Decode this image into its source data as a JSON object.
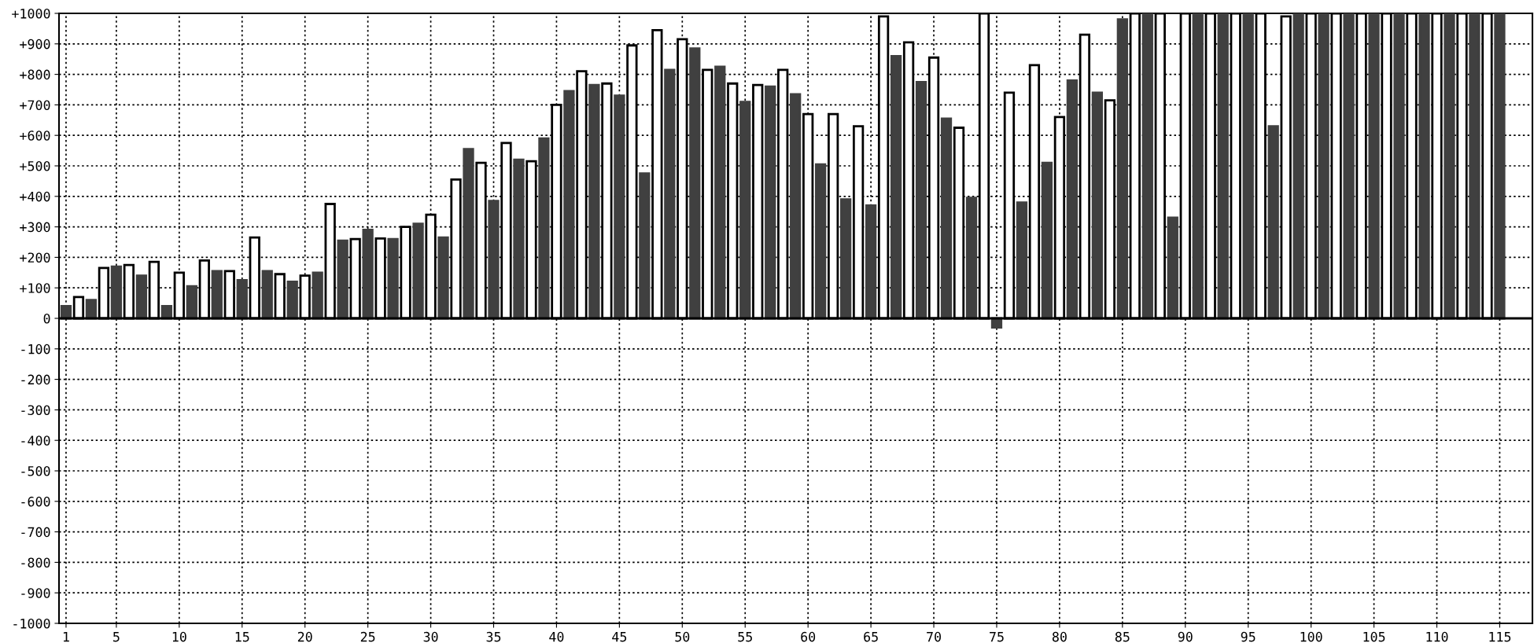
{
  "chart_data": {
    "type": "bar",
    "categories": [
      "1",
      null,
      null,
      null,
      "5",
      null,
      null,
      null,
      null,
      "10",
      null,
      null,
      null,
      null,
      "15",
      null,
      null,
      null,
      null,
      "20",
      null,
      null,
      null,
      null,
      "25",
      null,
      null,
      null,
      null,
      "30",
      null,
      null,
      null,
      null,
      "35",
      null,
      null,
      null,
      null,
      "40",
      null,
      null,
      null,
      null,
      "45",
      null,
      null,
      null,
      null,
      "50",
      null,
      null,
      null,
      null,
      "55",
      null,
      null,
      null,
      null,
      "60",
      null,
      null,
      null,
      null,
      "65",
      null,
      null,
      null,
      null,
      "70",
      null,
      null,
      null,
      null,
      "75",
      null,
      null,
      null,
      null,
      "80",
      null,
      null,
      null,
      null,
      "85",
      null,
      null,
      null,
      null,
      "90",
      null,
      null,
      null,
      null,
      "95",
      null,
      null,
      null,
      null,
      "100",
      null,
      null,
      null,
      null,
      "105",
      null,
      null,
      null,
      null,
      "110",
      null,
      null,
      null,
      null,
      "115"
    ],
    "values": [
      40,
      70,
      60,
      165,
      170,
      175,
      140,
      185,
      40,
      150,
      105,
      190,
      155,
      155,
      125,
      265,
      155,
      145,
      120,
      140,
      150,
      375,
      255,
      260,
      290,
      262,
      260,
      300,
      310,
      340,
      265,
      455,
      555,
      510,
      385,
      575,
      520,
      515,
      590,
      700,
      745,
      810,
      765,
      770,
      730,
      895,
      475,
      945,
      815,
      915,
      885,
      815,
      825,
      770,
      710,
      765,
      760,
      815,
      735,
      670,
      505,
      670,
      390,
      630,
      370,
      990,
      860,
      905,
      775,
      855,
      655,
      625,
      395,
      1000,
      -30,
      740,
      380,
      830,
      510,
      660,
      780,
      930,
      740,
      715,
      980,
      1000,
      1000,
      1000,
      330,
      1000,
      1000,
      1000,
      1000,
      1000,
      1000,
      1000,
      630,
      990,
      1000,
      1000,
      1000,
      1000,
      1000,
      1000,
      1000,
      1000,
      1000,
      1000,
      1000,
      1000,
      1000,
      1000,
      1000,
      1000,
      1000
    ],
    "colors": [
      "#404040",
      "#ffffff",
      "#404040",
      "#ffffff",
      "#404040",
      "#ffffff",
      "#404040",
      "#ffffff",
      "#404040",
      "#ffffff",
      "#404040",
      "#ffffff",
      "#404040",
      "#ffffff",
      "#404040",
      "#ffffff",
      "#404040",
      "#ffffff",
      "#404040",
      "#ffffff",
      "#404040",
      "#ffffff",
      "#404040",
      "#ffffff",
      "#404040",
      "#ffffff",
      "#404040",
      "#ffffff",
      "#404040",
      "#ffffff",
      "#404040",
      "#ffffff",
      "#404040",
      "#ffffff",
      "#404040",
      "#ffffff",
      "#404040",
      "#ffffff",
      "#404040",
      "#ffffff",
      "#404040",
      "#ffffff",
      "#404040",
      "#ffffff",
      "#404040",
      "#ffffff",
      "#404040",
      "#ffffff",
      "#404040",
      "#ffffff",
      "#404040",
      "#ffffff",
      "#404040",
      "#ffffff",
      "#404040",
      "#ffffff",
      "#404040",
      "#ffffff",
      "#404040",
      "#ffffff",
      "#404040",
      "#ffffff",
      "#404040",
      "#ffffff",
      "#404040",
      "#ffffff",
      "#404040",
      "#ffffff",
      "#404040",
      "#ffffff",
      "#404040",
      "#ffffff",
      "#404040",
      "#ffffff",
      "#404040",
      "#ffffff",
      "#404040",
      "#ffffff",
      "#404040",
      "#ffffff",
      "#404040",
      "#ffffff",
      "#404040",
      "#ffffff",
      "#404040",
      "#ffffff",
      "#404040",
      "#ffffff",
      "#404040",
      "#ffffff",
      "#404040",
      "#ffffff",
      "#404040",
      "#ffffff",
      "#404040",
      "#ffffff",
      "#404040",
      "#ffffff",
      "#404040",
      "#ffffff",
      "#404040",
      "#ffffff",
      "#404040",
      "#ffffff",
      "#404040",
      "#ffffff",
      "#404040",
      "#ffffff",
      "#404040",
      "#ffffff",
      "#404040",
      "#ffffff",
      "#404040",
      "#ffffff",
      "#404040"
    ],
    "ylim": [
      -1000,
      1000
    ],
    "yticks": [
      {
        "value": 1000,
        "label": "+1000"
      },
      {
        "value": 900,
        "label": "+900"
      },
      {
        "value": 800,
        "label": "+800"
      },
      {
        "value": 700,
        "label": "+700"
      },
      {
        "value": 600,
        "label": "+600"
      },
      {
        "value": 500,
        "label": "+500"
      },
      {
        "value": 400,
        "label": "+400"
      },
      {
        "value": 300,
        "label": "+300"
      },
      {
        "value": 200,
        "label": "+200"
      },
      {
        "value": 100,
        "label": "+100"
      },
      0,
      -100,
      -200,
      -300,
      -400,
      -500,
      -600,
      -700,
      -800,
      -900,
      -1000
    ],
    "grid": true
  }
}
